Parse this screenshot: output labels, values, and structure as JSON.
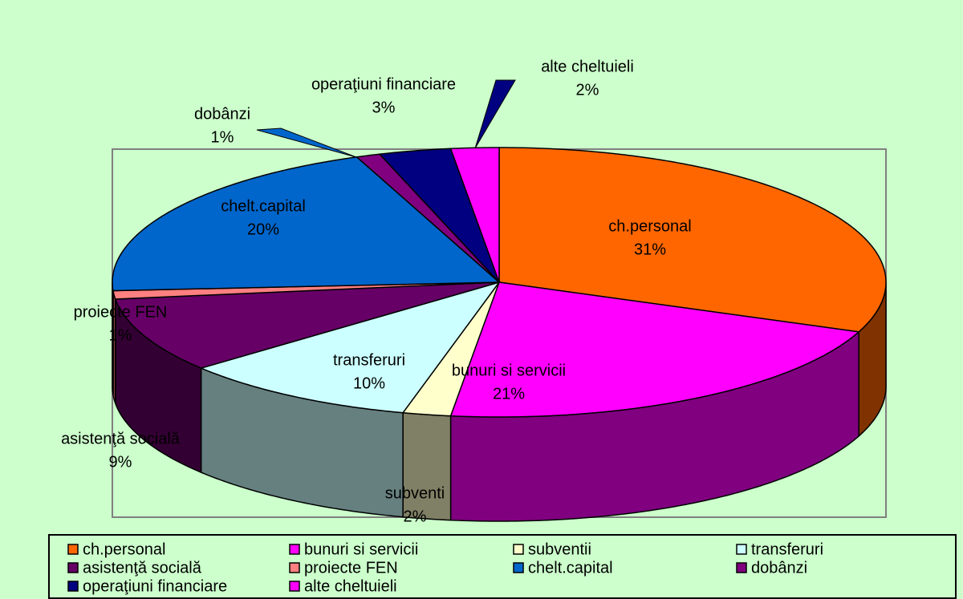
{
  "chart_data": {
    "type": "pie3d",
    "categories": [
      "ch.personal",
      "bunuri si servicii",
      "subventii",
      "transferuri",
      "asistenţă socială",
      "proiecte FEN",
      "chelt.capital",
      "dobânzi",
      "operaţiuni financiare",
      "alte cheltuieli"
    ],
    "slice_labels": [
      "ch.personal",
      "bunuri si servicii",
      "subventi",
      "transferuri",
      "asistenţă socială",
      "proiecte FEN",
      "chelt.capital",
      "dobânzi",
      "operaţiuni financiare",
      "alte cheltuieli"
    ],
    "values": [
      31,
      21,
      2,
      10,
      9,
      1,
      20,
      1,
      3,
      2
    ],
    "value_labels": [
      "31%",
      "21%",
      "2%",
      "10%",
      "9%",
      "1%",
      "20%",
      "1%",
      "3%",
      "2%"
    ],
    "colors": [
      "#FF6600",
      "#FF00FF",
      "#FFFFCC",
      "#CCFFFF",
      "#660066",
      "#FF8080",
      "#0066CC",
      "#800080",
      "#000080",
      "#FF00FF"
    ],
    "legend": "bottom"
  }
}
